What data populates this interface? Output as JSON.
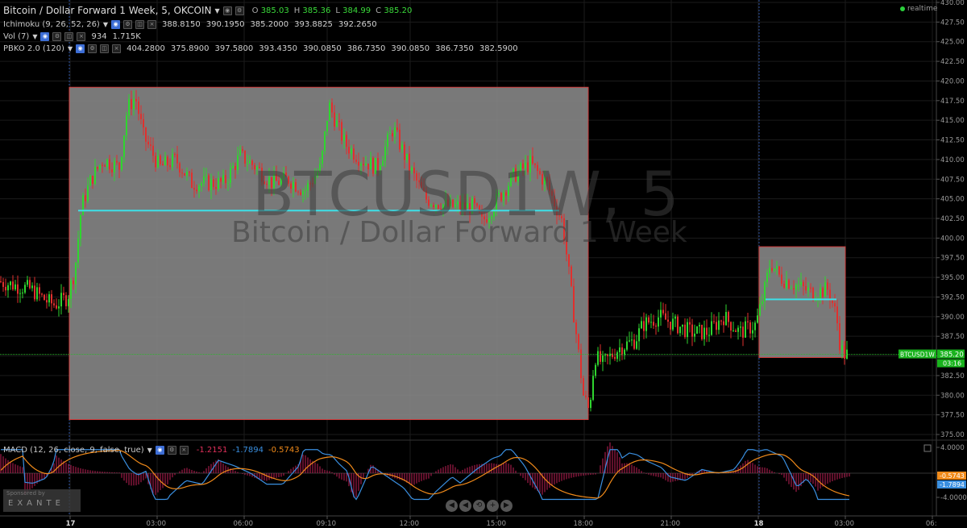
{
  "header": {
    "title": "Bitcoin / Dollar Forward 1 Week, 5, OKCOIN",
    "ohlc": [
      {
        "label": "O",
        "value": "385.03"
      },
      {
        "label": "H",
        "value": "385.36"
      },
      {
        "label": "L",
        "value": "384.99"
      },
      {
        "label": "C",
        "value": "385.20"
      }
    ]
  },
  "indicators": [
    {
      "name": "Ichimoku (9, 26, 52, 26)",
      "values": [
        "388.8150",
        "390.1950",
        "385.2000",
        "393.8825",
        "392.2650"
      ]
    },
    {
      "name": "Vol (7)",
      "values": [
        "934",
        "1.715K"
      ]
    },
    {
      "name": "PBKO 2.0 (120)",
      "values": [
        "404.2800",
        "375.8900",
        "397.5800",
        "393.4350",
        "390.0850",
        "386.7350",
        "390.0850",
        "386.7350",
        "382.5900"
      ]
    }
  ],
  "realtime_label": "realtime",
  "watermark": {
    "symbol": "BTCUSD1W, 5",
    "name": "Bitcoin / Dollar Forward 1 Week"
  },
  "price_tag": {
    "symbol": "BTCUSD1W",
    "price": "385.20",
    "countdown": "03:16"
  },
  "macd": {
    "label": "MACD (12, 26, close, 9, false, true)",
    "values": [
      {
        "text": "-1.2151",
        "color": "#e0305a"
      },
      {
        "text": "-1.7894",
        "color": "#3a8fe0"
      },
      {
        "text": "-0.5743",
        "color": "#f08a1a"
      }
    ],
    "tags": [
      {
        "text": "-0.5743",
        "color": "#f08a1a"
      },
      {
        "text": "-1.7894",
        "color": "#3a8fe0"
      }
    ],
    "ticks": [
      "4.0000",
      "-4.0000"
    ]
  },
  "sponsor": {
    "line1": "Sponsored by",
    "line2": "EXANTE"
  },
  "nav_buttons": [
    "◀",
    "◀",
    "⟲",
    "+",
    "▶"
  ],
  "chart_data": {
    "type": "candlestick",
    "y_ticks": [
      "430.00",
      "427.50",
      "425.00",
      "422.50",
      "420.00",
      "417.50",
      "415.00",
      "412.50",
      "410.00",
      "407.50",
      "405.00",
      "402.50",
      "400.00",
      "397.50",
      "395.00",
      "392.50",
      "390.00",
      "387.50",
      "385.00",
      "382.50",
      "380.00",
      "377.50",
      "375.00"
    ],
    "ylim": [
      375,
      430
    ],
    "x_ticks": [
      "17",
      "03:00",
      "06:00",
      "09:10",
      "12:00",
      "15:00",
      "18:00",
      "21:00",
      "18",
      "03:00",
      "06:"
    ],
    "colors": {
      "up": "#2fd52f",
      "down": "#e0302e",
      "box_fill": "#8a8a8a",
      "box_border": "#d23a3a",
      "level": "#3de0e8",
      "last_price_line": "#2fb52f"
    },
    "boxes": [
      {
        "high": 419.2,
        "low": 376.9,
        "level": 403.5
      },
      {
        "high": 398.9,
        "low": 384.8,
        "level": 392.2
      }
    ],
    "last_price": 385.2
  }
}
